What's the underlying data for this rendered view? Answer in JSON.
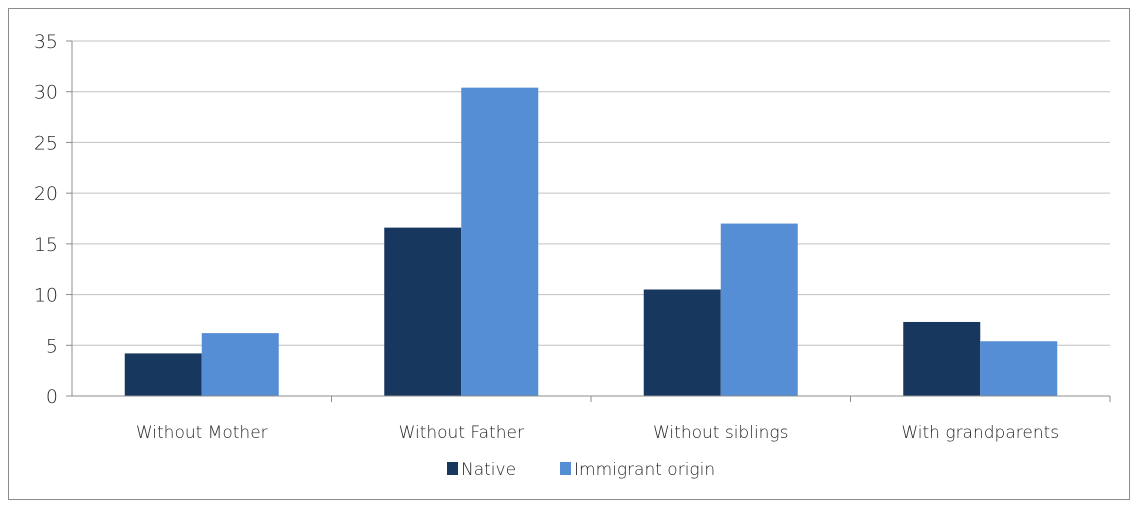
{
  "chart_data": {
    "type": "bar",
    "title": "",
    "xlabel": "",
    "ylabel": "",
    "categories": [
      "Without Mother",
      "Without Father",
      "Without siblings",
      "With grandparents"
    ],
    "series": [
      {
        "name": "Native",
        "values": [
          4.2,
          16.6,
          10.5,
          7.3
        ]
      },
      {
        "name": "Immigrant origin",
        "values": [
          6.2,
          30.4,
          17.0,
          5.4
        ]
      }
    ],
    "ylim": [
      0,
      35
    ],
    "yticks": [
      "0",
      "5",
      "10",
      "15",
      "20",
      "25",
      "30",
      "35"
    ],
    "ytick_values": [
      0,
      5,
      10,
      15,
      20,
      25,
      30,
      35
    ],
    "grid": true,
    "legend_position": "bottom",
    "colors": {
      "native": "#17375e",
      "immigrant": "#558ed5",
      "grid": "#c0c0c0",
      "axis": "#8c8c8c"
    }
  }
}
